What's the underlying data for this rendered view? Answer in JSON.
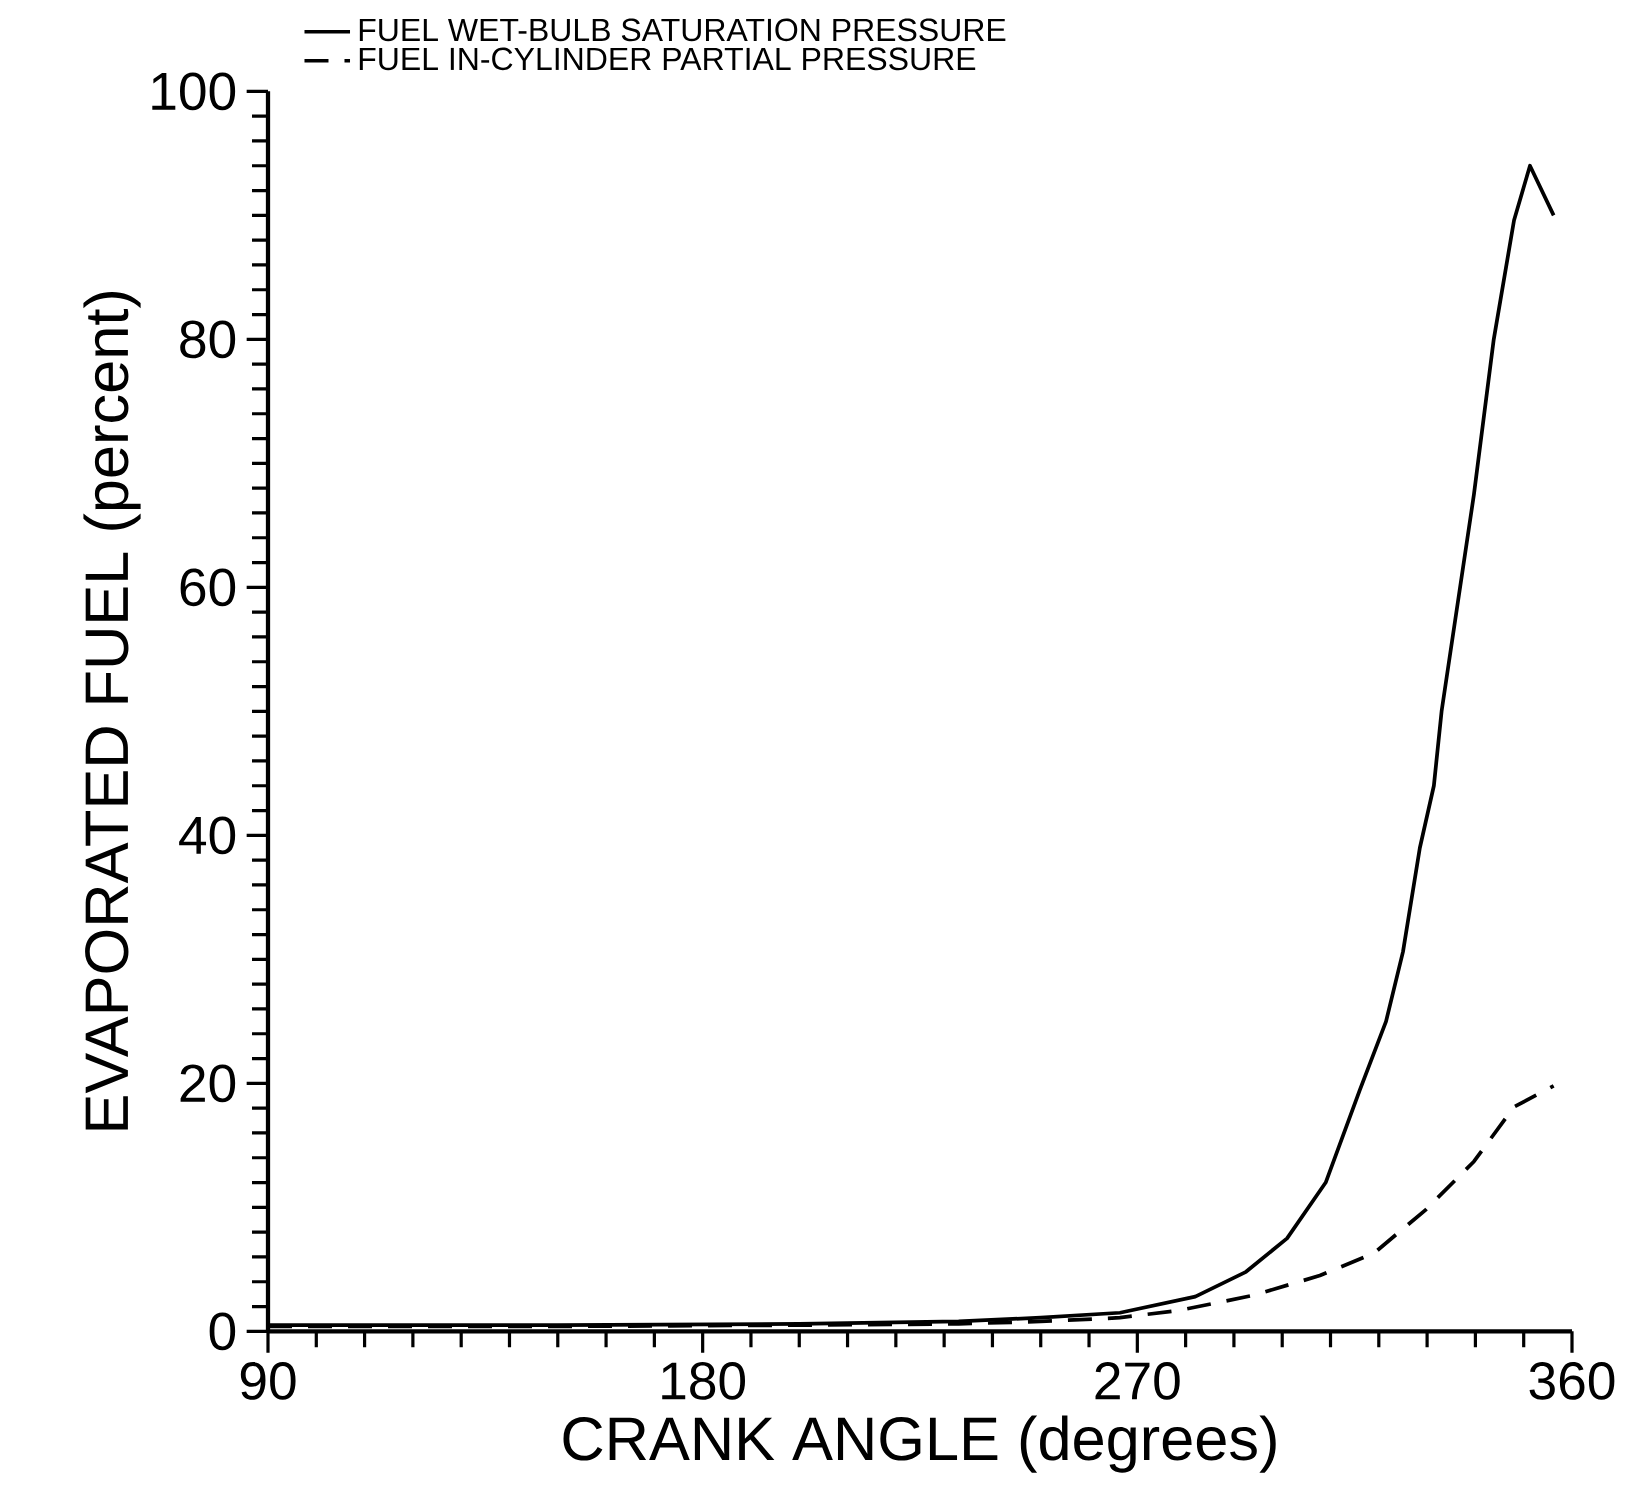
{
  "chart_data": {
    "type": "line",
    "xlabel": "CRANK ANGLE (degrees)",
    "ylabel": "EVAPORATED FUEL (percent)",
    "xlim": [
      90,
      360
    ],
    "xticks": [
      90,
      180,
      270,
      360
    ],
    "ylim": [
      0,
      100
    ],
    "yticks": [
      0,
      20,
      40,
      60,
      80,
      100
    ],
    "legend": "top",
    "grid": false,
    "marker": "none",
    "series": [
      {
        "name": "FUEL WET-BULB SATURATION PRESSURE",
        "color": "#000000",
        "line_style": "solid",
        "x": [
          90,
          150,
          200,
          233,
          250,
          266.4,
          282,
          292.5,
          301,
          309,
          316,
          321.5,
          325,
          328.5,
          331.4,
          333,
          339.7,
          343.8,
          348,
          351.3,
          356.2
        ],
        "values": [
          0.5,
          0.5,
          0.6,
          0.8,
          1.1,
          1.5,
          2.8,
          4.8,
          7.5,
          12,
          19.4,
          25,
          30.6,
          39,
          44,
          50,
          67.5,
          80,
          89.6,
          94,
          90
        ]
      },
      {
        "name": "FUEL IN-CYLINDER PARTIAL PRESSURE",
        "color": "#000000",
        "line_style": "dashed",
        "x": [
          90,
          150,
          200,
          233,
          250,
          266.4,
          278.8,
          294,
          307.8,
          319,
          329.7,
          339.7,
          348,
          356.2
        ],
        "values": [
          0.4,
          0.4,
          0.5,
          0.6,
          0.8,
          1.1,
          1.7,
          2.9,
          4.5,
          6.3,
          9.8,
          13.7,
          18.1,
          19.8
        ]
      }
    ]
  }
}
